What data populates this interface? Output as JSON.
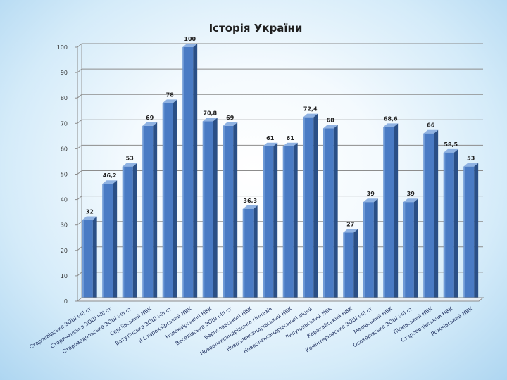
{
  "chart_data": {
    "type": "bar",
    "title": "Історія України",
    "xlabel": "",
    "ylabel": "",
    "ylim": [
      0,
      100
    ],
    "yticks": [
      0,
      10,
      20,
      30,
      40,
      50,
      60,
      70,
      80,
      90,
      100
    ],
    "grid": true,
    "legend": "none",
    "bar_color": "#4a7bc4",
    "categories": [
      "Старокаїрська ЗОШ І-ІІІ ст",
      "Стариченська ЗОШ І-ІІІ ст",
      "Староводольська ЗОШ І-ІІІ ст",
      "Сергіївський НВК",
      "Ватутінська ЗОШ І-ІІІ ст",
      "ІІ Старокаїрський НВК",
      "Новокаїрський НВК",
      "Веселівська ЗОШ І-ІІІ ст",
      "Бериславський НВК",
      "Новоолександрівська гімназія",
      "Новоолександрівський НВК",
      "Новоолександрівський ліцей",
      "Липундівський НВК",
      "Каракайський НВК",
      "Комінтернівська ЗОШ І-ІІІ ст",
      "Малівський НВК",
      "Осокорівська ЗОШ І-ІІІ ст",
      "Пісківський НВК",
      "Староорлівський НВК",
      "Рожнівський НВК"
    ],
    "values": [
      32,
      46.2,
      53,
      69,
      78,
      100,
      70.8,
      69,
      36.3,
      61,
      61,
      72.4,
      68,
      27,
      39,
      68.6,
      39,
      66,
      58.5,
      53
    ],
    "value_labels": [
      "32",
      "46,2",
      "53",
      "69",
      "78",
      "100",
      "70,8",
      "69",
      "36,3",
      "61",
      "61",
      "72,4",
      "68",
      "27",
      "39",
      "68,6",
      "39",
      "66",
      "58,5",
      "53"
    ]
  }
}
